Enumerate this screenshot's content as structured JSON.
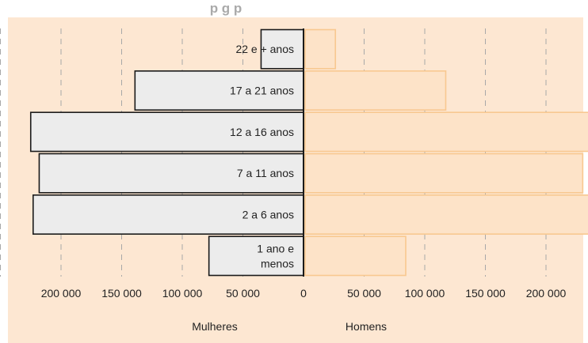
{
  "chart_data": {
    "type": "bar",
    "orientation": "horizontal",
    "subtype": "population-pyramid",
    "title": "p       g  p",
    "categories": [
      "1 ano e menos",
      "2 a 6 anos",
      "7 a 11 anos",
      "12 a 16 anos",
      "17 a 21 anos",
      "22 e + anos"
    ],
    "category_label_lines": [
      [
        "1 ano e",
        "menos"
      ],
      [
        "2 a 6 anos"
      ],
      [
        "7 a 11 anos"
      ],
      [
        "12 a 16 anos"
      ],
      [
        "17 a 21 anos"
      ],
      [
        "22 e + anos"
      ]
    ],
    "series": [
      {
        "name": "Mulheres",
        "side": "left",
        "values": [
          78000,
          223000,
          218000,
          225000,
          139000,
          35000
        ]
      },
      {
        "name": "Homens",
        "side": "right",
        "values": [
          83000,
          234000,
          229000,
          237000,
          116000,
          25000
        ]
      }
    ],
    "xlim": [
      -250000,
      250000
    ],
    "ticks": [
      -200000,
      -150000,
      -100000,
      -50000,
      0,
      50000,
      100000,
      150000,
      200000
    ],
    "tick_labels": [
      "200 000",
      "150 000",
      "100 000",
      "50 000",
      "0",
      "50 000",
      "100 000",
      "150 000",
      "200 000"
    ],
    "grid": "vertical-dashed",
    "colors": {
      "panel_background": "#fde7d2",
      "mulheres_fill": "#ececec",
      "mulheres_stroke": "#1a1a1a",
      "homens_fill": "#fde3c8",
      "homens_stroke": "#f8c890",
      "grid": "#a8a8a8",
      "text": "#222222",
      "axis": "#1a1a1a"
    }
  }
}
